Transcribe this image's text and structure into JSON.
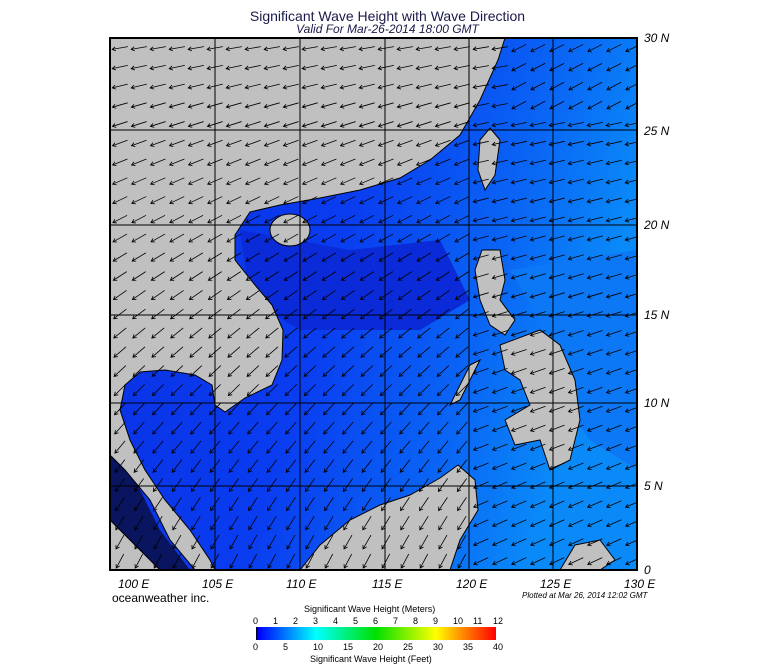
{
  "title": "Significant Wave Height with Wave Direction",
  "subtitle": "Valid For Mar-26-2014 18:00 GMT",
  "credit": "oceanweather inc.",
  "plotted": "Plotted at Mar 26, 2014 12:02 GMT",
  "map": {
    "lon_range": [
      99,
      130
    ],
    "lat_range": [
      0,
      30
    ],
    "lat_labels": [
      "30 N",
      "25 N",
      "20 N",
      "15 N",
      "10 N",
      "5 N",
      "0"
    ],
    "lon_labels": [
      "100 E",
      "105 E",
      "110 E",
      "115 E",
      "120 E",
      "125 E",
      "130 E"
    ],
    "land_color": "#c0c0c0",
    "grid": true,
    "arrows": true
  },
  "colorbar": {
    "title_top": "Significant Wave Height (Meters)",
    "title_bottom": "Significant Wave Height (Feet)",
    "meters": [
      "0",
      "1",
      "2",
      "3",
      "4",
      "5",
      "6",
      "7",
      "8",
      "9",
      "10",
      "11",
      "12"
    ],
    "feet": [
      "0",
      "5",
      "10",
      "15",
      "20",
      "25",
      "30",
      "35",
      "40"
    ],
    "colors": [
      "#000000",
      "#0000ff",
      "#0080ff",
      "#00ffff",
      "#00ff80",
      "#00e000",
      "#80ff00",
      "#ffff00",
      "#ff8000",
      "#ff0000"
    ]
  }
}
